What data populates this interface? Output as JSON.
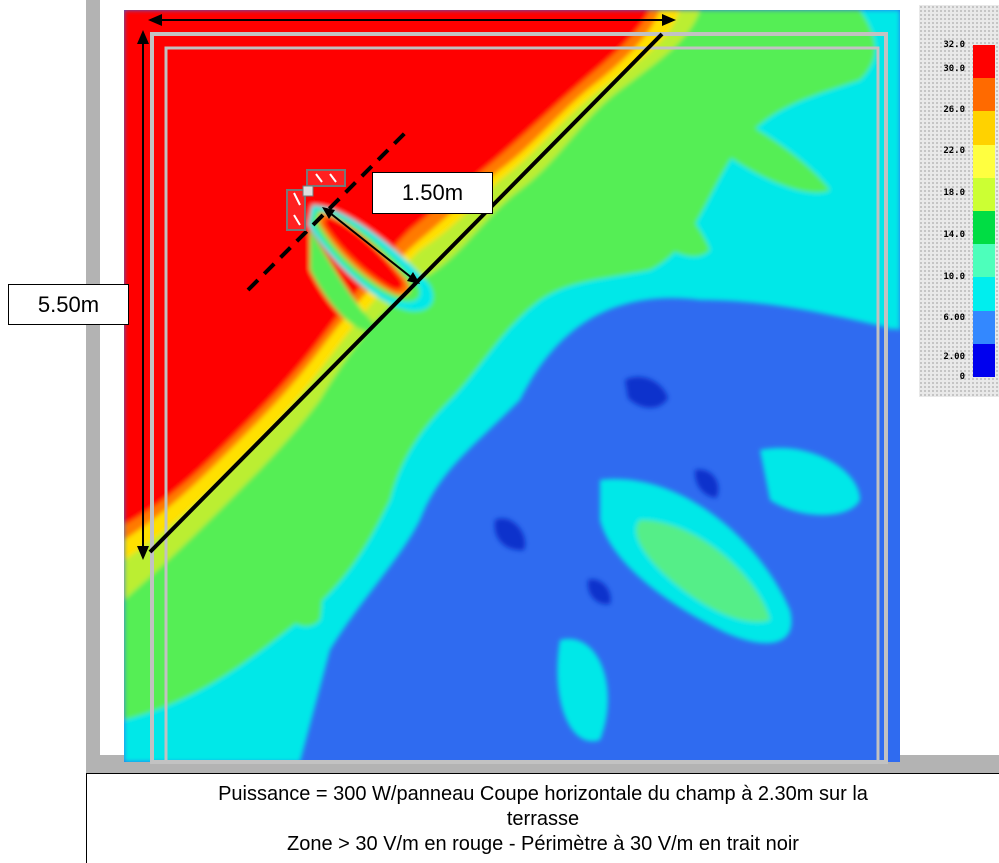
{
  "dimensions": {
    "diagonal_label": "1.50m",
    "height_label": "5.50m"
  },
  "legend": {
    "ticks": [
      "32.0",
      "30.0",
      "26.0",
      "22.0",
      "18.0",
      "14.0",
      "10.0",
      "6.00",
      "2.00",
      "0"
    ],
    "colors": [
      "#ff0000",
      "#ff6a00",
      "#ffd200",
      "#ffff40",
      "#ccff33",
      "#00dd44",
      "#4dffbb",
      "#00eeee",
      "#3388ff",
      "#0000ee"
    ]
  },
  "caption": {
    "line1": "Puissance = 300 W/panneau Coupe horizontale du champ à 2.30m sur la",
    "line2": "terrasse",
    "line3": "Zone > 30 V/m en rouge - Périmètre à 30 V/m en trait noir"
  },
  "colors": {
    "red_zone": "#ff0000",
    "blue_zone": "#2f6bf0",
    "cyan_zone": "#00e8e8",
    "green_zone": "#55ee55",
    "frame_gray": "#b0b0b0"
  }
}
